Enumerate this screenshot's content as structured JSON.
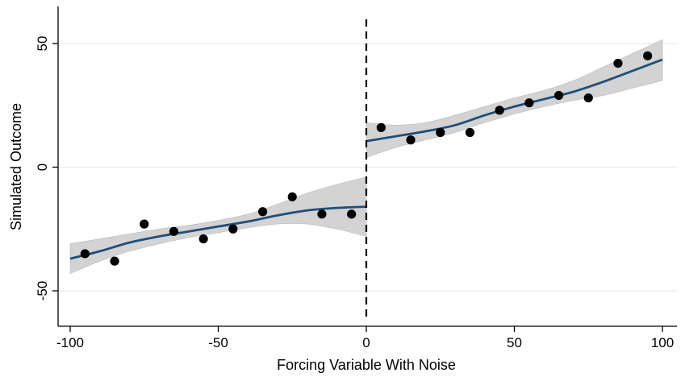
{
  "chart_data": {
    "type": "scatter",
    "title": "",
    "xlabel": "Forcing Variable With Noise",
    "ylabel": "Simulated Outcome",
    "xlim": [
      -102,
      102
    ],
    "ylim": [
      -65,
      64
    ],
    "xticks": [
      -100,
      -50,
      0,
      50,
      100
    ],
    "yticks": [
      -50,
      0,
      50
    ],
    "xtick_labels": [
      "-100",
      "-50",
      "0",
      "50",
      "100"
    ],
    "ytick_labels": [
      "-50",
      "0",
      "50"
    ],
    "grid": "horizontal",
    "legend": "none",
    "cutoff": 0,
    "series": [
      {
        "kind": "binned-means",
        "x": [
          -95,
          -85,
          -75,
          -65,
          -55,
          -45,
          -35,
          -25,
          -15,
          -5,
          5,
          15,
          25,
          35,
          45,
          55,
          65,
          75,
          85,
          95
        ],
        "y": [
          -35,
          -38,
          -23,
          -26,
          -29,
          -25,
          -18,
          -12,
          -19,
          -19,
          16,
          11,
          14,
          14,
          23,
          26,
          29,
          28,
          42,
          45
        ]
      },
      {
        "kind": "fit-left",
        "x": [
          -100,
          -90,
          -80,
          -70,
          -60,
          -50,
          -40,
          -30,
          -20,
          -10,
          0
        ],
        "y": [
          -37,
          -34,
          -30.5,
          -28,
          -26,
          -24,
          -22,
          -19.5,
          -17.5,
          -16.5,
          -16
        ],
        "ci_lower": [
          -43,
          -38,
          -34,
          -31,
          -28.5,
          -26.5,
          -24.5,
          -23,
          -23,
          -25,
          -28
        ],
        "ci_upper": [
          -31,
          -29,
          -27,
          -25,
          -23.5,
          -21.5,
          -19,
          -15,
          -10.5,
          -7,
          -4
        ]
      },
      {
        "kind": "fit-right",
        "x": [
          0,
          10,
          20,
          30,
          40,
          50,
          60,
          70,
          80,
          90,
          100
        ],
        "y": [
          10.5,
          12.5,
          14.5,
          17,
          21,
          24.5,
          27.5,
          30.5,
          34.5,
          39,
          43.5
        ],
        "ci_lower": [
          4,
          8,
          11,
          14,
          18,
          21.5,
          24.5,
          27,
          29,
          32,
          35
        ],
        "ci_upper": [
          18,
          17,
          18,
          21,
          24.5,
          28,
          31,
          35,
          40.5,
          46,
          51.5
        ]
      }
    ],
    "colors": {
      "fit_line": "#1f4e79",
      "ci_band": "#d3d3d3",
      "ci_band_edge": "#b8b8b8",
      "points": "#000000",
      "gridline": "#eaeaea",
      "axis": "#000000",
      "cutoff_line": "#000000"
    }
  }
}
